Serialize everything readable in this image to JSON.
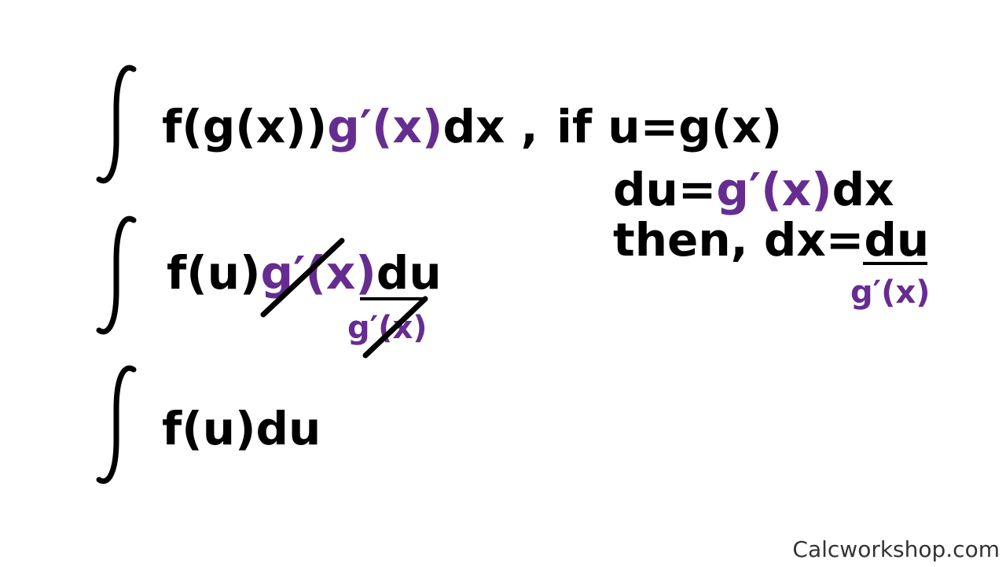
{
  "row1": {
    "part_a": "f(g(x))",
    "part_b": "g′(x)",
    "part_c": "dx ,",
    "condition": "if u=g(x)"
  },
  "right": {
    "line2_a": "du=",
    "line2_b": "g′(x)",
    "line2_c": "dx",
    "line3_a": "then, dx=",
    "line3_num": "du",
    "line3_den": "g′(x)"
  },
  "row2": {
    "part_a": "f(u)",
    "part_b": "g′(x)",
    "part_num": "du",
    "part_den": "g′(x)"
  },
  "row3": {
    "expr": "f(u)du"
  },
  "watermark": "Calcworkshop.com",
  "colors": {
    "accent": "#662d91",
    "text": "#000000"
  }
}
